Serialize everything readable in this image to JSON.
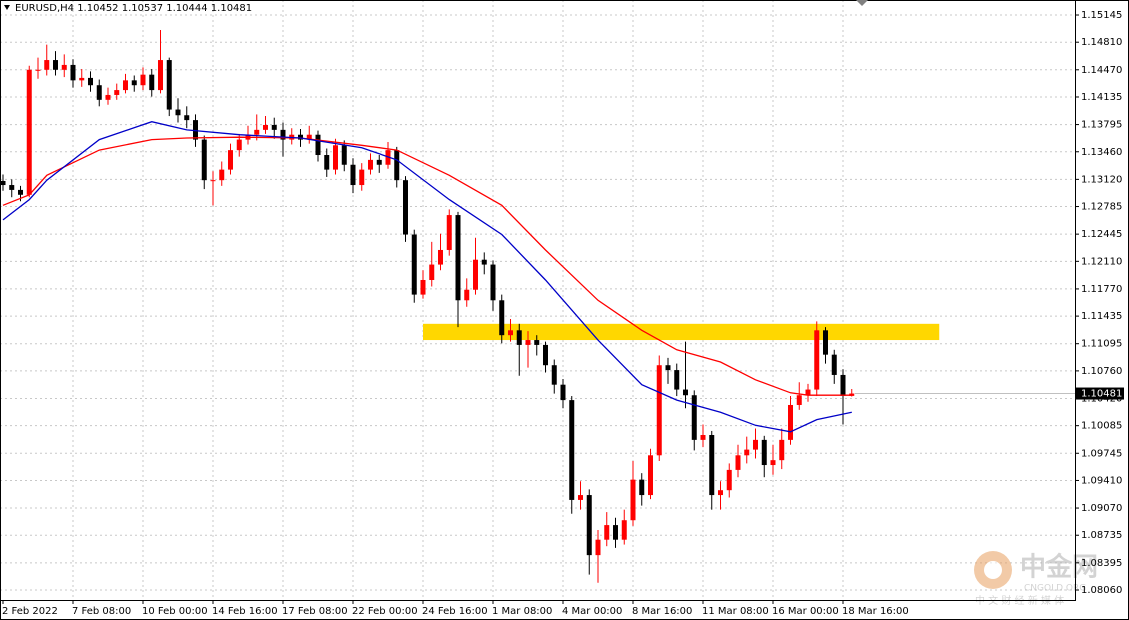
{
  "chart_data": {
    "type": "candlestick",
    "title": "EURUSD,H4  1.10452 1.10537 1.10444 1.10481",
    "up_color": "#ff0000",
    "down_color": "#000000",
    "open": [
      1.131,
      1.1305,
      1.1299,
      1.1293,
      1.1447,
      1.1447,
      1.1459,
      1.1447,
      1.1453,
      1.1434,
      1.1437,
      1.1428,
      1.141,
      1.1416,
      1.1422,
      1.1434,
      1.1428,
      1.1441,
      1.1422,
      1.1459,
      1.1398,
      1.1391,
      1.1385,
      1.1361,
      1.1311,
      1.1311,
      1.1324,
      1.1348,
      1.1361,
      1.1367,
      1.1373,
      1.1379,
      1.1373,
      1.1361,
      1.1367,
      1.1361,
      1.1367,
      1.1342,
      1.1324,
      1.1354,
      1.133,
      1.1305,
      1.1324,
      1.1336,
      1.133,
      1.1348,
      1.1311,
      1.1244,
      1.117,
      1.1188,
      1.1207,
      1.1225,
      1.1268,
      1.1163,
      1.1176,
      1.1213,
      1.1207,
      1.1163,
      1.112,
      1.1126,
      1.1108,
      1.1114,
      1.1108,
      1.1083,
      1.1059,
      1.104,
      1.0917,
      1.0923,
      1.0849,
      1.0868,
      1.0886,
      1.0868,
      1.0892,
      1.0942,
      1.0923,
      1.0972,
      1.1083,
      1.1077,
      1.1053,
      1.1046,
      1.0991,
      1.0997,
      1.0923,
      1.0929,
      1.0954,
      1.0972,
      1.0979,
      1.0991,
      1.096,
      1.0966,
      1.0991,
      1.1034,
      1.1046,
      1.1053,
      1.1126,
      1.1096,
      1.1071,
      1.10452
    ],
    "high": [
      1.1318,
      1.1312,
      1.1304,
      1.1452,
      1.1462,
      1.1478,
      1.147,
      1.1466,
      1.146,
      1.1448,
      1.1445,
      1.1435,
      1.1425,
      1.143,
      1.1442,
      1.144,
      1.145,
      1.1448,
      1.1496,
      1.1462,
      1.1412,
      1.1402,
      1.1392,
      1.1366,
      1.1322,
      1.1334,
      1.1356,
      1.1368,
      1.1378,
      1.1392,
      1.139,
      1.1388,
      1.1382,
      1.1375,
      1.1374,
      1.1378,
      1.1372,
      1.135,
      1.1362,
      1.136,
      1.1338,
      1.1332,
      1.1344,
      1.1342,
      1.1358,
      1.1352,
      1.1316,
      1.125,
      1.12,
      1.1235,
      1.1245,
      1.1275,
      1.1272,
      1.119,
      1.124,
      1.1222,
      1.1212,
      1.117,
      1.114,
      1.1134,
      1.1125,
      1.112,
      1.1112,
      1.109,
      1.1066,
      1.1045,
      1.094,
      1.093,
      1.088,
      1.0902,
      1.0895,
      1.0905,
      1.0965,
      1.095,
      1.098,
      1.1095,
      1.1092,
      1.1085,
      1.1112,
      1.1052,
      1.101,
      1.1002,
      1.094,
      1.0962,
      1.0985,
      1.0995,
      1.1005,
      1.0996,
      1.0985,
      1.1005,
      1.1045,
      1.1062,
      1.106,
      1.1137,
      1.113,
      1.1102,
      1.1078,
      1.10537
    ],
    "low": [
      1.1298,
      1.129,
      1.1285,
      1.129,
      1.1436,
      1.144,
      1.144,
      1.1438,
      1.1425,
      1.1426,
      1.142,
      1.1402,
      1.1404,
      1.141,
      1.1418,
      1.142,
      1.1422,
      1.1414,
      1.1418,
      1.139,
      1.1382,
      1.1375,
      1.1352,
      1.13,
      1.128,
      1.1304,
      1.1318,
      1.134,
      1.1355,
      1.136,
      1.1368,
      1.1362,
      1.134,
      1.1355,
      1.1352,
      1.1356,
      1.1334,
      1.1315,
      1.1318,
      1.1322,
      1.1295,
      1.1298,
      1.1318,
      1.132,
      1.1325,
      1.1302,
      1.1235,
      1.116,
      1.1165,
      1.118,
      1.12,
      1.1218,
      1.113,
      1.1155,
      1.117,
      1.1195,
      1.115,
      1.111,
      1.1112,
      1.107,
      1.108,
      1.1095,
      1.1074,
      1.1048,
      1.103,
      1.09,
      1.0905,
      1.0825,
      1.0815,
      1.086,
      1.0858,
      1.0862,
      1.0885,
      1.091,
      1.0918,
      1.0965,
      1.106,
      1.1045,
      1.103,
      1.0978,
      1.0982,
      1.0905,
      1.0905,
      1.092,
      1.0945,
      1.0962,
      1.0968,
      1.0945,
      1.0948,
      1.0955,
      1.0985,
      1.1028,
      1.1038,
      1.1045,
      1.1085,
      1.106,
      1.101,
      1.10444
    ],
    "close": [
      1.1305,
      1.1299,
      1.1293,
      1.1447,
      1.1447,
      1.1459,
      1.1447,
      1.1453,
      1.1434,
      1.1437,
      1.1428,
      1.141,
      1.1416,
      1.1422,
      1.1434,
      1.1428,
      1.1441,
      1.1422,
      1.1459,
      1.1398,
      1.1391,
      1.1385,
      1.1361,
      1.1311,
      1.1311,
      1.1324,
      1.1348,
      1.1361,
      1.1367,
      1.1373,
      1.1379,
      1.1373,
      1.1361,
      1.1367,
      1.1361,
      1.1367,
      1.1342,
      1.1324,
      1.1354,
      1.133,
      1.1305,
      1.1324,
      1.1336,
      1.133,
      1.1348,
      1.1311,
      1.1244,
      1.117,
      1.1188,
      1.1207,
      1.1225,
      1.1268,
      1.1163,
      1.1176,
      1.1213,
      1.1207,
      1.1163,
      1.112,
      1.1126,
      1.1108,
      1.1114,
      1.1108,
      1.1083,
      1.1059,
      1.104,
      1.0917,
      1.0923,
      1.0849,
      1.0868,
      1.0886,
      1.0868,
      1.0892,
      1.0942,
      1.0923,
      1.0972,
      1.1083,
      1.1077,
      1.1053,
      1.1046,
      1.0991,
      1.0997,
      1.0923,
      1.0929,
      1.0954,
      1.0972,
      1.0979,
      1.0991,
      1.096,
      1.0966,
      1.0991,
      1.1034,
      1.1046,
      1.1053,
      1.1126,
      1.1096,
      1.1071,
      1.10452,
      1.10481
    ],
    "overlays": [
      {
        "color": "#ff0000",
        "x": [
          0,
          3,
          5,
          11,
          17,
          21,
          27,
          34,
          41,
          45,
          51,
          57,
          62,
          68,
          73,
          77,
          82,
          86,
          90,
          92,
          97
        ],
        "values": [
          1.128,
          1.1293,
          1.1317,
          1.1348,
          1.1361,
          1.1363,
          1.1364,
          1.1363,
          1.1354,
          1.1348,
          1.1317,
          1.128,
          1.1225,
          1.1163,
          1.1126,
          1.1102,
          1.1087,
          1.1065,
          1.1049,
          1.1046,
          1.1046
        ]
      },
      {
        "color": "#0000c8",
        "x": [
          0,
          3,
          5,
          11,
          17,
          21,
          27,
          34,
          41,
          45,
          51,
          57,
          62,
          68,
          73,
          77,
          82,
          86,
          90,
          93,
          97
        ],
        "values": [
          1.1262,
          1.1287,
          1.1311,
          1.1361,
          1.1383,
          1.1373,
          1.1367,
          1.1363,
          1.1351,
          1.1336,
          1.1287,
          1.1244,
          1.1188,
          1.1114,
          1.1059,
          1.104,
          1.1025,
          1.1009,
          1.1001,
          1.1016,
          1.1025
        ]
      }
    ],
    "zone": {
      "color": "#ffd700",
      "x": [
        48,
        107
      ],
      "ylim": [
        1.1114,
        1.1134
      ]
    },
    "last_price": {
      "value": 1.10481,
      "label": "1.10481"
    },
    "xlim": [
      -0.5,
      123
    ],
    "ylim": [
      1.07937,
      1.1533
    ],
    "grid": true,
    "yticks": [
      {
        "value": 1.15145,
        "label": "1.15145"
      },
      {
        "value": 1.1481,
        "label": "1.14810"
      },
      {
        "value": 1.1447,
        "label": "1.14470"
      },
      {
        "value": 1.14135,
        "label": "1.14135"
      },
      {
        "value": 1.13795,
        "label": "1.13795"
      },
      {
        "value": 1.1346,
        "label": "1.13460"
      },
      {
        "value": 1.1312,
        "label": "1.13120"
      },
      {
        "value": 1.12785,
        "label": "1.12785"
      },
      {
        "value": 1.12445,
        "label": "1.12445"
      },
      {
        "value": 1.1211,
        "label": "1.12110"
      },
      {
        "value": 1.1177,
        "label": "1.11770"
      },
      {
        "value": 1.11435,
        "label": "1.11435"
      },
      {
        "value": 1.11095,
        "label": "1.11095"
      },
      {
        "value": 1.1076,
        "label": "1.10760"
      },
      {
        "value": 1.1042,
        "label": "1.10420"
      },
      {
        "value": 1.10085,
        "label": "1.10085"
      },
      {
        "value": 1.09745,
        "label": "1.09745"
      },
      {
        "value": 1.0941,
        "label": "1.09410"
      },
      {
        "value": 1.0907,
        "label": "1.09070"
      },
      {
        "value": 1.08735,
        "label": "1.08735"
      },
      {
        "value": 1.08395,
        "label": "1.08395"
      },
      {
        "value": 1.0806,
        "label": "1.08060"
      }
    ],
    "xticks": [
      {
        "value": 0,
        "label": "2 Feb 2022"
      },
      {
        "value": 8,
        "label": "7 Feb 08:00"
      },
      {
        "value": 16,
        "label": "10 Feb 00:00"
      },
      {
        "value": 24,
        "label": "14 Feb 16:00"
      },
      {
        "value": 32,
        "label": "17 Feb 08:00"
      },
      {
        "value": 40,
        "label": "22 Feb 00:00"
      },
      {
        "value": 48,
        "label": "24 Feb 16:00"
      },
      {
        "value": 56,
        "label": "1 Mar 08:00"
      },
      {
        "value": 64,
        "label": "4 Mar 00:00"
      },
      {
        "value": 72,
        "label": "8 Mar 16:00"
      },
      {
        "value": 80,
        "label": "11 Mar 08:00"
      },
      {
        "value": 88,
        "label": "16 Mar 00:00"
      },
      {
        "value": 96,
        "label": "18 Mar 16:00"
      }
    ],
    "watermark": {
      "name": "中金网",
      "domain": "CNGOLD.ORG",
      "slogan": "中 文 财 经 新 媒 体"
    }
  }
}
